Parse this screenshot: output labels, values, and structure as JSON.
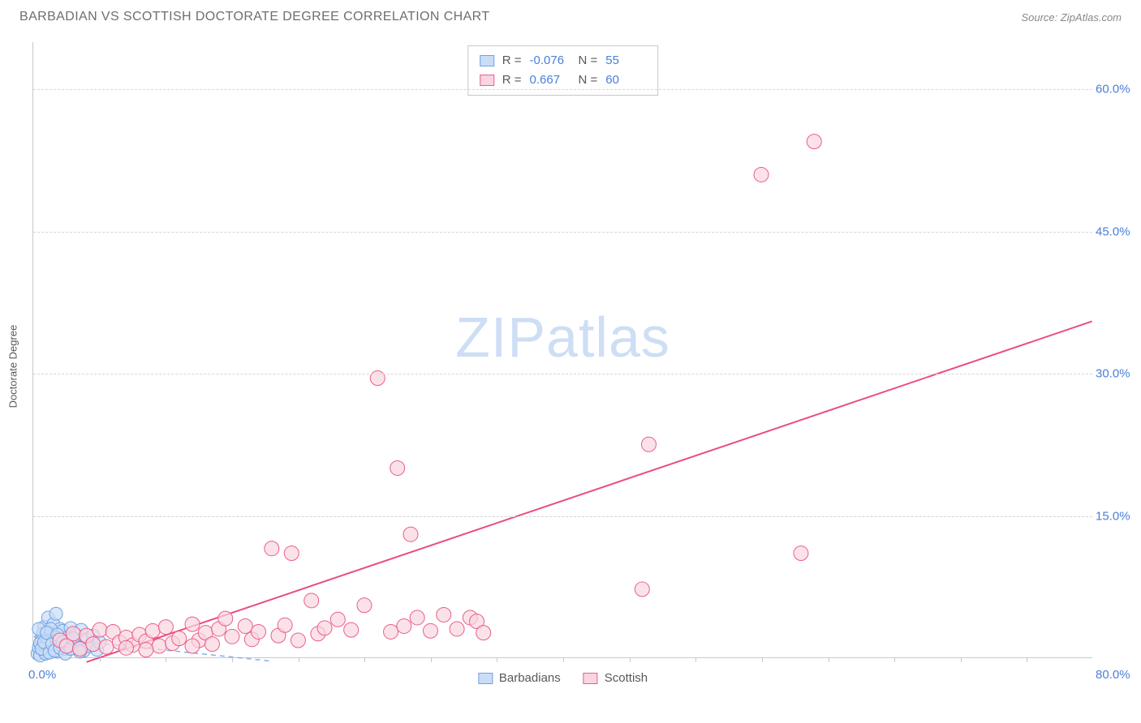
{
  "header": {
    "title": "BARBADIAN VS SCOTTISH DOCTORATE DEGREE CORRELATION CHART",
    "source_label": "Source: ZipAtlas.com"
  },
  "watermark": {
    "bold": "ZIP",
    "light": "atlas"
  },
  "chart": {
    "type": "scatter",
    "y_axis_label": "Doctorate Degree",
    "background_color": "#ffffff",
    "grid_color": "#d6d6d6",
    "axis_color": "#c8c8c8",
    "tick_label_color": "#4a7fd8",
    "xlim": [
      0,
      80
    ],
    "ylim": [
      0,
      65
    ],
    "x_origin_label": "0.0%",
    "x_max_label": "80.0%",
    "x_ticks_minor": [
      5,
      10,
      15,
      20,
      25,
      30,
      35,
      40,
      45,
      50,
      55,
      60,
      65,
      70,
      75
    ],
    "y_ticks": [
      {
        "v": 15,
        "label": "15.0%"
      },
      {
        "v": 30,
        "label": "30.0%"
      },
      {
        "v": 45,
        "label": "45.0%"
      },
      {
        "v": 60,
        "label": "60.0%"
      }
    ],
    "stats": [
      {
        "swatch_fill": "#c9ddf6",
        "swatch_border": "#6fa2e5",
        "r_label": "R =",
        "r": "-0.076",
        "n_label": "N =",
        "n": "55"
      },
      {
        "swatch_fill": "#fad5df",
        "swatch_border": "#ea5d8a",
        "r_label": "R =",
        "r": "0.667",
        "n_label": "N =",
        "n": "60"
      }
    ],
    "bottom_legend": [
      {
        "swatch_fill": "#c9ddf6",
        "swatch_border": "#6fa2e5",
        "label": "Barbadians"
      },
      {
        "swatch_fill": "#fad5df",
        "swatch_border": "#ea5d8a",
        "label": "Scottish"
      }
    ],
    "series": [
      {
        "name": "Barbadians",
        "marker_fill": "#c9ddf6",
        "marker_stroke": "#6fa2e5",
        "marker_fill_opacity": 0.7,
        "marker_radius": 8,
        "trend": {
          "color": "#7fb1ea",
          "width": 1.5,
          "dash": "6,5",
          "x1": 0,
          "y1": 2.2,
          "x2": 18,
          "y2": -0.4
        },
        "points": [
          [
            0.3,
            0.4
          ],
          [
            0.4,
            1.0
          ],
          [
            0.5,
            0.2
          ],
          [
            0.6,
            2.0
          ],
          [
            0.7,
            0.8
          ],
          [
            0.8,
            3.2
          ],
          [
            0.9,
            1.2
          ],
          [
            1.0,
            0.5
          ],
          [
            1.1,
            4.2
          ],
          [
            1.2,
            2.0
          ],
          [
            1.3,
            0.8
          ],
          [
            1.4,
            2.5
          ],
          [
            1.5,
            3.5
          ],
          [
            1.6,
            1.8
          ],
          [
            1.7,
            4.6
          ],
          [
            1.8,
            0.6
          ],
          [
            1.9,
            2.2
          ],
          [
            2.0,
            3.0
          ],
          [
            2.1,
            1.1
          ],
          [
            2.2,
            2.8
          ],
          [
            2.4,
            0.9
          ],
          [
            2.6,
            2.1
          ],
          [
            2.8,
            3.1
          ],
          [
            3.0,
            1.5
          ],
          [
            3.2,
            2.4
          ],
          [
            3.4,
            1.0
          ],
          [
            3.6,
            2.9
          ],
          [
            3.8,
            0.7
          ],
          [
            4.0,
            1.9
          ],
          [
            4.2,
            1.2
          ],
          [
            4.5,
            2.3
          ],
          [
            4.8,
            0.8
          ],
          [
            5.0,
            1.6
          ],
          [
            0.5,
            1.5
          ],
          [
            0.7,
            2.5
          ],
          [
            0.9,
            0.4
          ],
          [
            1.1,
            1.7
          ],
          [
            1.3,
            3.0
          ],
          [
            1.5,
            0.9
          ],
          [
            1.7,
            2.1
          ],
          [
            0.4,
            3.0
          ],
          [
            0.6,
            0.9
          ],
          [
            0.8,
            1.6
          ],
          [
            1.0,
            2.6
          ],
          [
            1.2,
            0.5
          ],
          [
            1.4,
            1.4
          ],
          [
            1.6,
            0.7
          ],
          [
            1.8,
            2.4
          ],
          [
            2.0,
            1.0
          ],
          [
            2.2,
            1.6
          ],
          [
            2.4,
            0.4
          ],
          [
            2.6,
            1.3
          ],
          [
            2.8,
            0.9
          ],
          [
            3.0,
            2.0
          ],
          [
            3.5,
            0.6
          ]
        ]
      },
      {
        "name": "Scottish",
        "marker_fill": "#fad5df",
        "marker_stroke": "#ea5d8a",
        "marker_fill_opacity": 0.7,
        "marker_radius": 9,
        "trend": {
          "color": "#ea4d7f",
          "width": 2,
          "dash": "",
          "x1": 4,
          "y1": -0.5,
          "x2": 80,
          "y2": 35.5
        },
        "points": [
          [
            2.0,
            1.8
          ],
          [
            2.5,
            1.2
          ],
          [
            3.0,
            2.5
          ],
          [
            3.5,
            0.9
          ],
          [
            4.0,
            2.3
          ],
          [
            4.5,
            1.4
          ],
          [
            5.0,
            2.9
          ],
          [
            5.5,
            1.1
          ],
          [
            6.0,
            2.7
          ],
          [
            6.5,
            1.6
          ],
          [
            7.0,
            2.1
          ],
          [
            7.5,
            1.3
          ],
          [
            8.0,
            2.4
          ],
          [
            8.5,
            1.7
          ],
          [
            9.0,
            2.8
          ],
          [
            9.5,
            1.2
          ],
          [
            10.0,
            3.2
          ],
          [
            10.5,
            1.5
          ],
          [
            11.0,
            2.0
          ],
          [
            12.0,
            3.5
          ],
          [
            12.5,
            1.8
          ],
          [
            13.0,
            2.6
          ],
          [
            13.5,
            1.4
          ],
          [
            14.0,
            3.0
          ],
          [
            14.5,
            4.1
          ],
          [
            15.0,
            2.2
          ],
          [
            16.0,
            3.3
          ],
          [
            16.5,
            1.9
          ],
          [
            17.0,
            2.7
          ],
          [
            18.0,
            11.5
          ],
          [
            18.5,
            2.3
          ],
          [
            19.0,
            3.4
          ],
          [
            19.5,
            11.0
          ],
          [
            20.0,
            1.8
          ],
          [
            21.0,
            6.0
          ],
          [
            21.5,
            2.5
          ],
          [
            22.0,
            3.1
          ],
          [
            23.0,
            4.0
          ],
          [
            24.0,
            2.9
          ],
          [
            25.0,
            5.5
          ],
          [
            26.0,
            29.5
          ],
          [
            27.0,
            2.7
          ],
          [
            27.5,
            20.0
          ],
          [
            28.0,
            3.3
          ],
          [
            28.5,
            13.0
          ],
          [
            29.0,
            4.2
          ],
          [
            30.0,
            2.8
          ],
          [
            31.0,
            4.5
          ],
          [
            32.0,
            3.0
          ],
          [
            33.0,
            4.2
          ],
          [
            46.0,
            7.2
          ],
          [
            46.5,
            22.5
          ],
          [
            55.0,
            51.0
          ],
          [
            58.0,
            11.0
          ],
          [
            59.0,
            54.5
          ],
          [
            7.0,
            1.0
          ],
          [
            8.5,
            0.8
          ],
          [
            12.0,
            1.2
          ],
          [
            33.5,
            3.8
          ],
          [
            34.0,
            2.6
          ]
        ]
      }
    ]
  }
}
